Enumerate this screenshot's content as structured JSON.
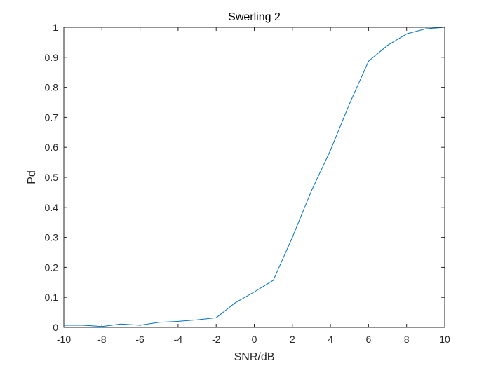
{
  "chart_data": {
    "type": "line",
    "title": "Swerling 2",
    "xlabel": "SNR/dB",
    "ylabel": "Pd",
    "xlim": [
      -10,
      10
    ],
    "ylim": [
      0,
      1
    ],
    "xticks": [
      -10,
      -8,
      -6,
      -4,
      -2,
      0,
      2,
      4,
      6,
      8,
      10
    ],
    "yticks": [
      0,
      0.1,
      0.2,
      0.3,
      0.4,
      0.5,
      0.6,
      0.7,
      0.8,
      0.9,
      1
    ],
    "xtick_labels": [
      "-10",
      "-8",
      "-6",
      "-4",
      "-2",
      "0",
      "2",
      "4",
      "6",
      "8",
      "10"
    ],
    "ytick_labels": [
      "0",
      "0.1",
      "0.2",
      "0.3",
      "0.4",
      "0.5",
      "0.6",
      "0.7",
      "0.8",
      "0.9",
      "1"
    ],
    "grid": false,
    "box": true,
    "series": [
      {
        "color": "#0072bd",
        "x": [
          -10,
          -9,
          -8,
          -7,
          -6,
          -5,
          -4,
          -3,
          -2,
          -1,
          0,
          1,
          2,
          3,
          4,
          5,
          6,
          7,
          8,
          9,
          10
        ],
        "values": [
          0.007,
          0.007,
          0.003,
          0.011,
          0.007,
          0.017,
          0.02,
          0.025,
          0.032,
          0.082,
          0.118,
          0.157,
          0.3,
          0.455,
          0.59,
          0.745,
          0.887,
          0.94,
          0.978,
          0.995,
          1.0
        ]
      }
    ]
  }
}
